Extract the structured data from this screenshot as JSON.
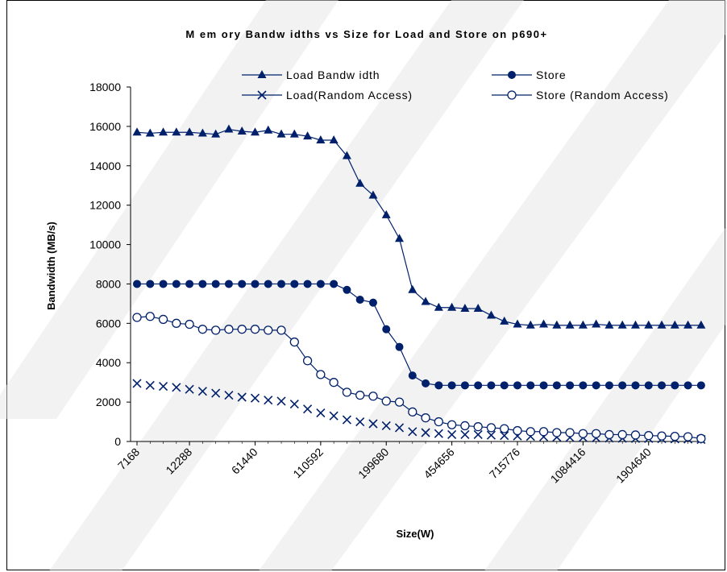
{
  "colors": {
    "series": "#00206b",
    "axis": "#000000",
    "watermark": "#e6e6e6"
  },
  "chart_data": {
    "type": "line",
    "title": "M em ory Bandw idths vs Size for Load and Store on p690+",
    "xlabel": "Size(W)",
    "ylabel": "Bandwidth (MB/s)",
    "ylim": [
      0,
      18000
    ],
    "yticks": [
      "0",
      "2000",
      "4000",
      "6000",
      "8000",
      "10000",
      "12000",
      "14000",
      "16000",
      "18000"
    ],
    "ytick_values": [
      0,
      2000,
      4000,
      6000,
      8000,
      10000,
      12000,
      14000,
      16000,
      18000
    ],
    "xtick_labels": [
      "7168",
      "12288",
      "61440",
      "110592",
      "199680",
      "454656",
      "715776",
      "1084416",
      "1904640"
    ],
    "xtick_indices": [
      0,
      4,
      9,
      14,
      19,
      24,
      29,
      34,
      39
    ],
    "num_points": 44,
    "grid": false,
    "legend_position": "top",
    "series": [
      {
        "name": "Load Bandw idth",
        "marker": "triangle",
        "values": [
          15700,
          15650,
          15700,
          15700,
          15700,
          15650,
          15600,
          15850,
          15750,
          15700,
          15800,
          15600,
          15600,
          15500,
          15300,
          15300,
          14500,
          13100,
          12500,
          11500,
          10300,
          7700,
          7100,
          6800,
          6800,
          6750,
          6750,
          6400,
          6100,
          5950,
          5900,
          5950,
          5900,
          5900,
          5900,
          5950,
          5900,
          5900,
          5900,
          5900,
          5900,
          5900,
          5900,
          5900
        ]
      },
      {
        "name": "Store",
        "marker": "circle-filled",
        "values": [
          8000,
          8000,
          8000,
          8000,
          8000,
          8000,
          8000,
          8000,
          8000,
          8000,
          8000,
          8000,
          8000,
          8000,
          8000,
          8000,
          7700,
          7200,
          7050,
          5700,
          4800,
          3350,
          2950,
          2850,
          2850,
          2850,
          2850,
          2850,
          2850,
          2850,
          2850,
          2850,
          2850,
          2850,
          2850,
          2850,
          2850,
          2850,
          2850,
          2850,
          2850,
          2850,
          2850,
          2850
        ]
      },
      {
        "name": "Load(Random Access)",
        "marker": "x",
        "values": [
          2950,
          2850,
          2800,
          2750,
          2650,
          2550,
          2450,
          2350,
          2250,
          2200,
          2100,
          2050,
          1900,
          1650,
          1450,
          1300,
          1100,
          1000,
          900,
          800,
          700,
          500,
          450,
          400,
          350,
          350,
          350,
          320,
          300,
          280,
          260,
          240,
          220,
          200,
          200,
          180,
          170,
          160,
          150,
          150,
          140,
          130,
          120,
          100
        ]
      },
      {
        "name": "Store (Random Access)",
        "marker": "circle-open",
        "values": [
          6300,
          6350,
          6200,
          6000,
          5950,
          5700,
          5650,
          5700,
          5700,
          5700,
          5650,
          5650,
          5050,
          4100,
          3400,
          3000,
          2500,
          2350,
          2300,
          2050,
          2000,
          1500,
          1200,
          1000,
          850,
          800,
          750,
          700,
          650,
          550,
          500,
          500,
          450,
          450,
          400,
          400,
          350,
          350,
          330,
          300,
          280,
          260,
          240,
          150
        ]
      }
    ]
  }
}
